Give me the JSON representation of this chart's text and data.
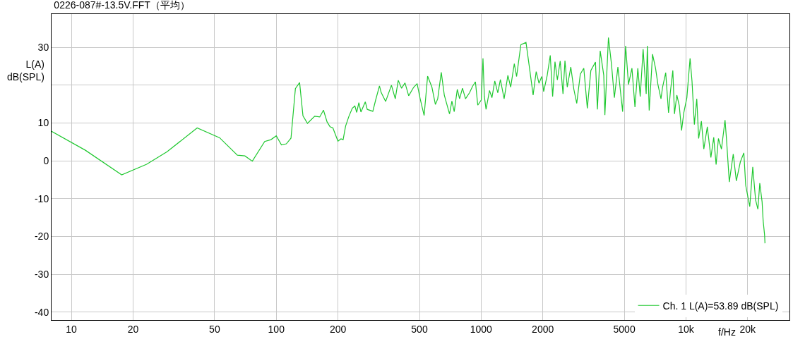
{
  "chart_data": {
    "type": "line",
    "title": "0226-087#-13.5V.FFT（平均）",
    "xlabel": "f/Hz",
    "ylabel": "L(A)\ndB(SPL)",
    "log": "x",
    "grid": true,
    "legend": "bottom right",
    "marker": "none",
    "line_style": "solid",
    "xlim": [
      8,
      32000
    ],
    "ylim": [
      -42.1,
      38.8
    ],
    "xticks": [
      10,
      20,
      50,
      100,
      200,
      500,
      1000,
      2000,
      5000,
      {
        "value": 10000,
        "label": "10k"
      },
      {
        "value": 20000,
        "label": "20k"
      }
    ],
    "yticks": [
      -40,
      -30,
      -20,
      -10,
      0,
      10,
      {
        "value": 20,
        "label": null
      },
      30
    ],
    "series": [
      {
        "name": "Ch. 1 L(A)=53.89 dB(SPL)",
        "color": "#20c830",
        "x": [
          8.0,
          11.7,
          17.6,
          23.3,
          29.3,
          41.1,
          52.9,
          64.6,
          70.3,
          76.4,
          87.8,
          94.2,
          100,
          106,
          112,
          118,
          124,
          130,
          135,
          142,
          154,
          163,
          170,
          177,
          183,
          189,
          200,
          207,
          212,
          218,
          226,
          235,
          242,
          247,
          253,
          259,
          272,
          278,
          296,
          306,
          319,
          325,
          342,
          365,
          381,
          394,
          409,
          425,
          443,
          468,
          487,
          504,
          527,
          548,
          575,
          598,
          614,
          639,
          661,
          701,
          720,
          739,
          765,
          785,
          811,
          839,
          878,
          908,
          938,
          963,
          1002,
          1021,
          1037,
          1057,
          1099,
          1129,
          1166,
          1206,
          1242,
          1295,
          1351,
          1394,
          1452,
          1490,
          1563,
          1656,
          1714,
          1794,
          1857,
          1916,
          1977,
          2020,
          2102,
          2175,
          2234,
          2294,
          2356,
          2432,
          2510,
          2566,
          2633,
          2740,
          2836,
          2929,
          3049,
          3171,
          3299,
          3433,
          3616,
          3695,
          3813,
          3969,
          4019,
          4183,
          4331,
          4470,
          4652,
          4906,
          5075,
          5240,
          5448,
          5635,
          5820,
          5979,
          6176,
          6394,
          6477,
          6613,
          6866,
          7101,
          7295,
          7550,
          7688,
          7962,
          8220,
          8394,
          8627,
          8787,
          9024,
          9273,
          9515,
          9755,
          10100,
          10470,
          10700,
          10990,
          11290,
          11530,
          11890,
          12220,
          12710,
          13230,
          13660,
          14030,
          14400,
          14900,
          15510,
          15760,
          16270,
          17010,
          17610,
          18420,
          19160,
          19570,
          20480,
          21180,
          21860,
          22440,
          22920,
          23530,
          23800,
          24190,
          24300
        ],
        "values": [
          7.8,
          2.8,
          -3.7,
          -0.9,
          2.4,
          8.7,
          6.1,
          1.5,
          1.3,
          -0.1,
          5.1,
          5.6,
          6.6,
          4.2,
          4.5,
          6.0,
          19.1,
          20.7,
          11.9,
          9.9,
          11.8,
          11.6,
          13.4,
          10.3,
          9.0,
          8.7,
          5.2,
          5.8,
          5.6,
          9.2,
          11.7,
          13.9,
          14.5,
          12.8,
          15.4,
          12.9,
          15.6,
          13.6,
          13.1,
          16.2,
          19.8,
          18.1,
          15.7,
          20.0,
          16.4,
          21.3,
          19.2,
          20.6,
          17.2,
          19.4,
          20.4,
          16.4,
          12.0,
          22.4,
          19.5,
          14.9,
          16.4,
          23.4,
          17.4,
          12.4,
          15.8,
          13.0,
          18.9,
          16.4,
          19.2,
          16.4,
          18.0,
          19.7,
          20.9,
          14.7,
          16.1,
          27.1,
          17.0,
          13.6,
          18.6,
          16.7,
          21.1,
          18.0,
          21.5,
          16.4,
          22.6,
          19.5,
          25.7,
          22.3,
          30.7,
          31.3,
          25.4,
          17.4,
          23.6,
          20.5,
          22.3,
          18.3,
          22.6,
          27.9,
          17.0,
          26.2,
          21.4,
          26.4,
          17.7,
          26.5,
          19.5,
          24.8,
          18.9,
          15.2,
          22.9,
          24.5,
          13.9,
          23.9,
          26.1,
          13.6,
          29.1,
          22.6,
          12.1,
          32.6,
          25.4,
          16.7,
          24.8,
          13.0,
          30.4,
          20.2,
          24.5,
          14.2,
          24.5,
          17.0,
          29.5,
          17.7,
          30.4,
          13.3,
          28.2,
          24.5,
          20.2,
          16.4,
          19.5,
          23.3,
          12.7,
          18.3,
          23.9,
          12.4,
          17.4,
          14.6,
          8.0,
          12.7,
          16.7,
          27.1,
          21.1,
          9.6,
          16.4,
          5.9,
          10.5,
          3.1,
          9.0,
          0.9,
          6.2,
          -1.0,
          5.9,
          3.1,
          10.8,
          5.9,
          -5.6,
          1.8,
          -5.3,
          -0.3,
          2.1,
          -6.5,
          -12.1,
          -1.6,
          -10.3,
          -12.8,
          -5.9,
          -10.9,
          -15.8,
          -19.6,
          -21.8
        ]
      }
    ]
  }
}
